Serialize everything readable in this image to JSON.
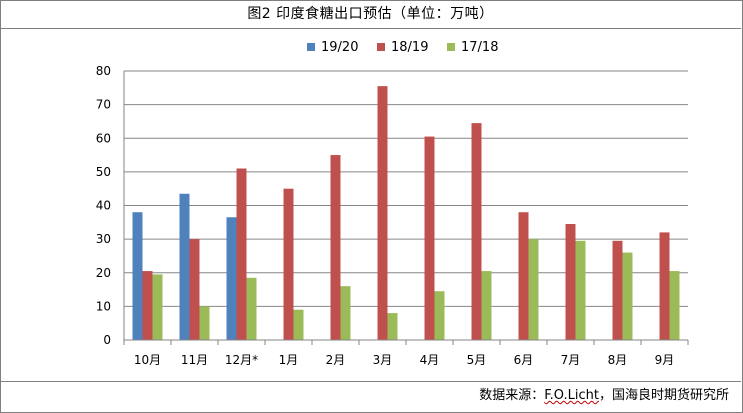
{
  "title": "图2 印度食糖出口预估（单位：万吨）",
  "source": {
    "prefix": "数据来源：",
    "underlined": "F.O.Licht",
    "suffix": "，国海良时期货研究所"
  },
  "chart_data": {
    "type": "bar",
    "title": "图2 印度食糖出口预估（单位：万吨）",
    "xlabel": "",
    "ylabel": "",
    "ylim": [
      0,
      80
    ],
    "yticks": [
      0,
      10,
      20,
      30,
      40,
      50,
      60,
      70,
      80
    ],
    "grid": true,
    "legend_position": "top-center",
    "categories": [
      "10月",
      "11月",
      "12月*",
      "1月",
      "2月",
      "3月",
      "4月",
      "5月",
      "6月",
      "7月",
      "8月",
      "9月"
    ],
    "series": [
      {
        "name": "19/20",
        "color": "#4f81bd",
        "values": [
          38,
          43.5,
          36.5,
          null,
          null,
          null,
          null,
          null,
          null,
          null,
          null,
          null
        ]
      },
      {
        "name": "18/19",
        "color": "#c0504d",
        "values": [
          20.5,
          30,
          51,
          45,
          55,
          75.5,
          60.5,
          64.5,
          38,
          34.5,
          29.5,
          32
        ]
      },
      {
        "name": "17/18",
        "color": "#9bbb59",
        "values": [
          19.5,
          10,
          18.5,
          9,
          16,
          8,
          14.5,
          20.5,
          30,
          29.5,
          26,
          20.5
        ]
      }
    ]
  }
}
